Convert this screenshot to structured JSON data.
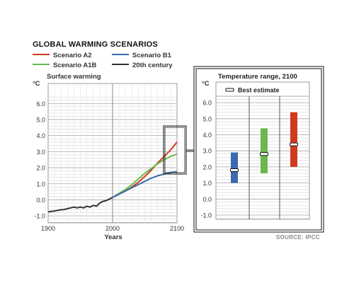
{
  "title": "GLOBAL WARMING SCENARIOS",
  "source": "SOURCE: IPCC",
  "colors": {
    "a2": "#d03a1e",
    "a1b": "#6ab84f",
    "b1": "#3a6aae",
    "c20": "#333333"
  },
  "chart_data": [
    {
      "type": "line",
      "title": "Surface warming",
      "xlabel": "Years",
      "ylabel": "°C",
      "xlim": [
        1900,
        2100
      ],
      "ylim": [
        -1.0,
        6.0
      ],
      "x_ticks": [
        1900,
        2000,
        2100
      ],
      "y_ticks": [
        {
          "v": 6.0,
          "label": "6.0"
        },
        {
          "v": 5.0,
          "label": "5.0"
        },
        {
          "v": 4.0,
          "label": "4.0"
        },
        {
          "v": 3.0,
          "label": "3.0"
        },
        {
          "v": 2.0,
          "label": "2.0"
        },
        {
          "v": 1.0,
          "label": "1.0"
        },
        {
          "v": 0.0,
          "label": "0.0"
        },
        {
          "v": -1.0,
          "label": "-1.0"
        }
      ],
      "grid": true,
      "series": [
        {
          "name": "20th century",
          "color": "#333333",
          "x": [
            1900,
            1905,
            1910,
            1915,
            1920,
            1925,
            1930,
            1935,
            1940,
            1945,
            1950,
            1955,
            1960,
            1965,
            1970,
            1975,
            1980,
            1985,
            1990,
            1995,
            2000
          ],
          "y": [
            -0.75,
            -0.72,
            -0.7,
            -0.65,
            -0.62,
            -0.6,
            -0.55,
            -0.5,
            -0.45,
            -0.5,
            -0.45,
            -0.5,
            -0.4,
            -0.45,
            -0.35,
            -0.4,
            -0.2,
            -0.1,
            -0.05,
            0.05,
            0.15
          ]
        },
        {
          "name": "Scenario A2",
          "color": "#d03a1e",
          "x": [
            2000,
            2010,
            2020,
            2030,
            2040,
            2050,
            2060,
            2070,
            2080,
            2090,
            2100
          ],
          "y": [
            0.15,
            0.35,
            0.55,
            0.8,
            1.1,
            1.45,
            1.85,
            2.3,
            2.7,
            3.1,
            3.6
          ]
        },
        {
          "name": "Scenario A1B",
          "color": "#6ab84f",
          "x": [
            2000,
            2010,
            2020,
            2030,
            2040,
            2050,
            2060,
            2070,
            2080,
            2090,
            2100
          ],
          "y": [
            0.15,
            0.4,
            0.65,
            0.95,
            1.3,
            1.65,
            1.95,
            2.25,
            2.5,
            2.7,
            2.85
          ]
        },
        {
          "name": "Scenario B1",
          "color": "#3a6aae",
          "x": [
            2000,
            2010,
            2020,
            2030,
            2040,
            2050,
            2060,
            2070,
            2080,
            2090,
            2100
          ],
          "y": [
            0.15,
            0.35,
            0.55,
            0.75,
            0.95,
            1.15,
            1.35,
            1.5,
            1.6,
            1.7,
            1.75
          ]
        }
      ]
    },
    {
      "type": "bar",
      "title": "Temperature range, 2100",
      "ylabel": "°C",
      "ylim": [
        -1.0,
        6.0
      ],
      "y_ticks": [
        {
          "v": 6.0,
          "label": "6.0"
        },
        {
          "v": 5.0,
          "label": "5.0"
        },
        {
          "v": 4.0,
          "label": "4.0"
        },
        {
          "v": 3.0,
          "label": "3.0"
        },
        {
          "v": 2.0,
          "label": "2.0"
        },
        {
          "v": 1.0,
          "label": "1.0"
        },
        {
          "v": 0.0,
          "label": "0.0"
        },
        {
          "v": -1.0,
          "label": "-1.0"
        }
      ],
      "legend": "Best estimate",
      "ranges": [
        {
          "scenario": "Scenario B1",
          "color": "#3a6aae",
          "low": 1.0,
          "high": 2.9,
          "best": 1.8
        },
        {
          "scenario": "Scenario A1B",
          "color": "#6ab84f",
          "low": 1.6,
          "high": 4.4,
          "best": 2.8
        },
        {
          "scenario": "Scenario A2",
          "color": "#d03a1e",
          "low": 2.0,
          "high": 5.4,
          "best": 3.4
        }
      ]
    }
  ],
  "legend": [
    {
      "label": "Scenario A2",
      "color": "#d03a1e"
    },
    {
      "label": "Scenario B1",
      "color": "#3a6aae"
    },
    {
      "label": "Scenario A1B",
      "color": "#6ab84f"
    },
    {
      "label": "20th century",
      "color": "#333333"
    }
  ]
}
